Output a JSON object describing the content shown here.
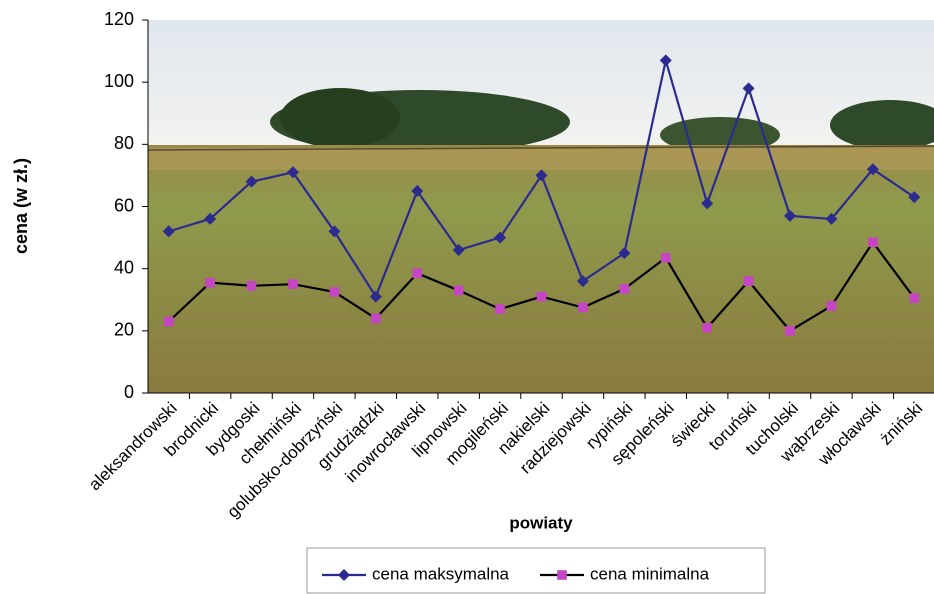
{
  "chart_data": {
    "type": "line",
    "x_label": "powiaty",
    "y_label": "cena (w zł.)",
    "categories": [
      "aleksandrowski",
      "brodnicki",
      "bydgoski",
      "chełmiński",
      "golubsko-dobrzyński",
      "grudziądzki",
      "inowrocławski",
      "lipnowski",
      "mogileński",
      "nakielski",
      "radziejowski",
      "rypiński",
      "sępoleński",
      "świecki",
      "toruński",
      "tucholski",
      "wąbrzeski",
      "włocławski",
      "żniński"
    ],
    "series": [
      {
        "name": "cena maksymalna",
        "color": "#2b2b8f",
        "marker": "diamond",
        "values": [
          52,
          56,
          68,
          71,
          52,
          31,
          65,
          46,
          50,
          70,
          36,
          45,
          107,
          61,
          98,
          57,
          56,
          72,
          63
        ]
      },
      {
        "name": "cena minimalna",
        "color": "#000000",
        "marker_color": "#c545c5",
        "marker": "square",
        "values": [
          23,
          35.5,
          34.5,
          35,
          32.5,
          24,
          38.5,
          33,
          27,
          31,
          27.5,
          33.5,
          43.5,
          21,
          36,
          20,
          28,
          48.5,
          30.5
        ]
      }
    ],
    "ylim": [
      0,
      120
    ],
    "yticks": [
      0,
      20,
      40,
      60,
      80,
      100,
      120
    ],
    "grid": false,
    "legend": "bottom"
  }
}
